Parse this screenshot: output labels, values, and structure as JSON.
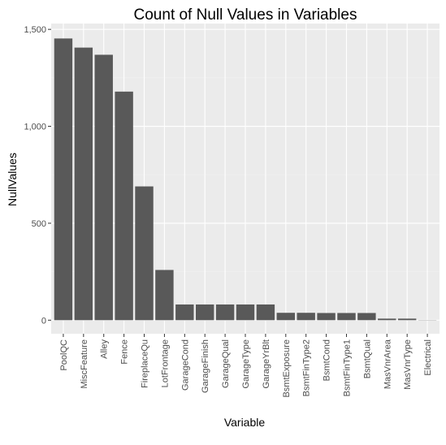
{
  "chart_data": {
    "type": "bar",
    "title": "Count of Null Values in Variables",
    "xlabel": "Variable",
    "ylabel": "NullValues",
    "categories": [
      "PoolQC",
      "MiscFeature",
      "Alley",
      "Fence",
      "FireplaceQu",
      "LotFrontage",
      "GarageCond",
      "GarageFinish",
      "GarageQual",
      "GarageType",
      "GarageYrBlt",
      "BsmtExposure",
      "BsmtFinType2",
      "BsmtCond",
      "BsmtFinType1",
      "BsmtQual",
      "MasVnrArea",
      "MasVnrType",
      "Electrical"
    ],
    "values": [
      1453,
      1406,
      1369,
      1179,
      690,
      259,
      81,
      81,
      81,
      81,
      81,
      38,
      38,
      37,
      37,
      37,
      8,
      8,
      1
    ],
    "ylim": [
      -70,
      1530
    ],
    "yticks": [
      0,
      500,
      1000,
      1500
    ],
    "ytick_labels": [
      "0",
      "500",
      "1,000",
      "1,500"
    ],
    "grid": true,
    "colors": {
      "bar": "#595959",
      "panel": "#ebebeb",
      "grid_major": "#ffffff",
      "grid_minor": "#f2f2f2"
    }
  }
}
